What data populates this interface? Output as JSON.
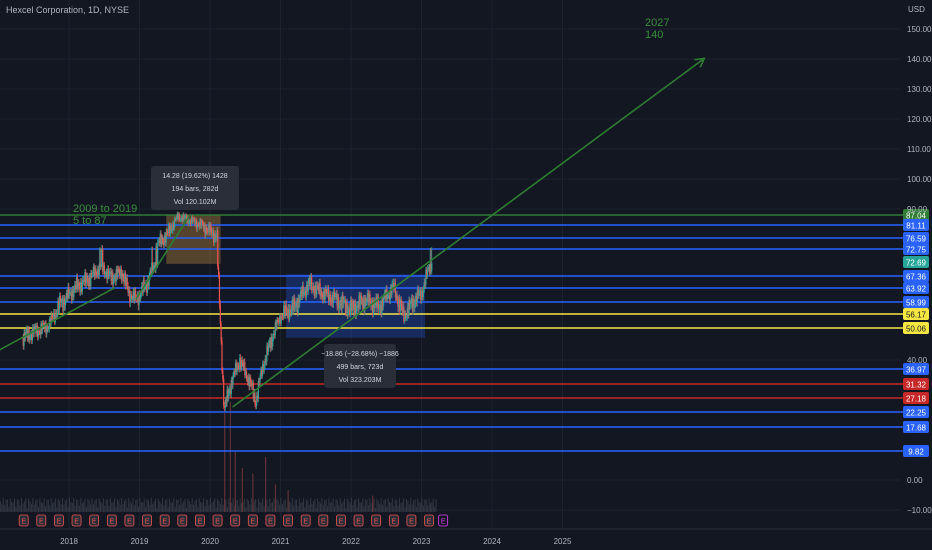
{
  "header": {
    "title": "Hexcel Corporation, 1D, NYSE",
    "currency": "USD"
  },
  "colors": {
    "background": "#131722",
    "grid": "#1e222d",
    "text": "#b2b5be",
    "blue": "#2962ff",
    "yellow": "#f5e642",
    "red": "#c62828",
    "green_line": "#2e7d32",
    "green_text": "#388e3c",
    "candle_up": "#26a69a",
    "candle_down": "#ef5350",
    "tooltip_bg": "#2a2e39",
    "current_price": "#26a69a"
  },
  "chart_data": {
    "type": "candlestick",
    "x_tick_labels": [
      "2018",
      "2019",
      "2020",
      "2021",
      "2022",
      "2023",
      "2024",
      "2025"
    ],
    "y_tick_labels": [
      "150.00",
      "140.00",
      "130.00",
      "120.00",
      "110.00",
      "100.00",
      "90.00",
      "40.00",
      "0.00",
      "−10.00"
    ],
    "y_axis_levels": [
      150,
      140,
      130,
      120,
      110,
      100,
      90,
      40,
      0,
      -10
    ],
    "horizontal_levels": [
      {
        "label": "87.04",
        "value": 87.04,
        "color": "green"
      },
      {
        "label": "81.11",
        "value": 81.11,
        "color": "blue"
      },
      {
        "label": "76.59",
        "value": 76.59,
        "color": "blue"
      },
      {
        "label": "72.75",
        "value": 72.75,
        "color": "blue"
      },
      {
        "label": "67.36",
        "value": 67.36,
        "color": "blue"
      },
      {
        "label": "63.92",
        "value": 63.92,
        "color": "blue"
      },
      {
        "label": "58.99",
        "value": 58.99,
        "color": "blue"
      },
      {
        "label": "56.17",
        "value": 56.17,
        "color": "yellow"
      },
      {
        "label": "50.06",
        "value": 50.06,
        "color": "yellow"
      },
      {
        "label": "36.97",
        "value": 36.97,
        "color": "blue"
      },
      {
        "label": "31.32",
        "value": 31.32,
        "color": "red"
      },
      {
        "label": "27.18",
        "value": 27.18,
        "color": "red"
      },
      {
        "label": "22.25",
        "value": 22.25,
        "color": "blue"
      },
      {
        "label": "17.68",
        "value": 17.68,
        "color": "blue"
      },
      {
        "label": "9.82",
        "value": 9.82,
        "color": "blue"
      }
    ],
    "current_price": {
      "label": "72.69",
      "value": 72.69
    },
    "annotations": [
      {
        "lines": [
          "2009 to 2019",
          "5 to 87"
        ]
      },
      {
        "lines": [
          "2027",
          "140"
        ]
      }
    ],
    "measurements": [
      {
        "lines": [
          "14.28 (19.62%) 1428",
          "194 bars, 282d",
          "Vol 120.102M"
        ]
      },
      {
        "lines": [
          "−18.86 (−28.68%) −1886",
          "499 bars, 723d",
          "Vol 323.203M"
        ]
      }
    ],
    "price_path": [
      [
        2017.35,
        47
      ],
      [
        2017.5,
        49
      ],
      [
        2017.7,
        51
      ],
      [
        2017.85,
        58
      ],
      [
        2018.1,
        64
      ],
      [
        2018.3,
        67
      ],
      [
        2018.45,
        71
      ],
      [
        2018.6,
        67
      ],
      [
        2018.75,
        69
      ],
      [
        2018.85,
        62
      ],
      [
        2018.95,
        60
      ],
      [
        2019.1,
        65
      ],
      [
        2019.25,
        74
      ],
      [
        2019.4,
        78
      ],
      [
        2019.55,
        86
      ],
      [
        2019.7,
        84
      ],
      [
        2019.85,
        82
      ],
      [
        2020.0,
        79
      ],
      [
        2020.1,
        77
      ],
      [
        2020.2,
        23
      ],
      [
        2020.3,
        32
      ],
      [
        2020.42,
        40
      ],
      [
        2020.55,
        33
      ],
      [
        2020.65,
        26
      ],
      [
        2020.75,
        38
      ],
      [
        2020.85,
        45
      ],
      [
        2021.0,
        55
      ],
      [
        2021.2,
        58
      ],
      [
        2021.4,
        65
      ],
      [
        2021.6,
        62
      ],
      [
        2021.8,
        60
      ],
      [
        2022.0,
        57
      ],
      [
        2022.2,
        60
      ],
      [
        2022.4,
        58
      ],
      [
        2022.6,
        64
      ],
      [
        2022.75,
        55
      ],
      [
        2022.9,
        60
      ],
      [
        2023.0,
        62
      ],
      [
        2023.1,
        70
      ],
      [
        2023.15,
        72.69
      ]
    ],
    "volume_spikes": [
      {
        "x": 2020.2,
        "value": 0.9
      },
      {
        "x": 2020.28,
        "value": 1.0
      },
      {
        "x": 2020.35,
        "value": 0.55
      },
      {
        "x": 2020.45,
        "value": 0.4
      },
      {
        "x": 2020.6,
        "value": 0.35
      },
      {
        "x": 2020.78,
        "value": 0.5
      },
      {
        "x": 2020.92,
        "value": 0.25
      },
      {
        "x": 2021.1,
        "value": 0.2
      },
      {
        "x": 2022.3,
        "value": 0.15
      }
    ],
    "event_markers": [
      {
        "x": 2017.35,
        "label": "E"
      },
      {
        "x": 2017.6,
        "label": "E"
      },
      {
        "x": 2017.85,
        "label": "E"
      },
      {
        "x": 2018.1,
        "label": "E"
      },
      {
        "x": 2018.35,
        "label": "E"
      },
      {
        "x": 2018.6,
        "label": "E"
      },
      {
        "x": 2018.85,
        "label": "E"
      },
      {
        "x": 2019.1,
        "label": "E"
      },
      {
        "x": 2019.35,
        "label": "E"
      },
      {
        "x": 2019.6,
        "label": "E"
      },
      {
        "x": 2019.85,
        "label": "E"
      },
      {
        "x": 2020.1,
        "label": "E"
      },
      {
        "x": 2020.35,
        "label": "E"
      },
      {
        "x": 2020.6,
        "label": "E"
      },
      {
        "x": 2020.85,
        "label": "E"
      },
      {
        "x": 2021.1,
        "label": "E"
      },
      {
        "x": 2021.35,
        "label": "E"
      },
      {
        "x": 2021.6,
        "label": "E"
      },
      {
        "x": 2021.85,
        "label": "E"
      },
      {
        "x": 2022.1,
        "label": "E"
      },
      {
        "x": 2022.35,
        "label": "E"
      },
      {
        "x": 2022.6,
        "label": "E"
      },
      {
        "x": 2022.85,
        "label": "E"
      },
      {
        "x": 2023.1,
        "label": "E"
      },
      {
        "x": 2023.3,
        "label": "E"
      }
    ],
    "trend_lines": [
      {
        "from": [
          2017.0,
          43
        ],
        "to": [
          2018.65,
          64
        ],
        "color": "green"
      },
      {
        "from": [
          2018.95,
          60
        ],
        "to": [
          2019.7,
          86
        ],
        "color": "green"
      },
      {
        "from": [
          2020.32,
          24
        ],
        "to": [
          2027.0,
          140
        ],
        "color": "green",
        "arrow": true
      }
    ],
    "ranges": [
      {
        "x": [
          2019.38,
          2020.15
        ],
        "y": [
          72,
          87
        ],
        "color": "orange"
      },
      {
        "x": [
          2021.08,
          2023.05
        ],
        "y": [
          47,
          68
        ],
        "color": "blue"
      }
    ]
  }
}
